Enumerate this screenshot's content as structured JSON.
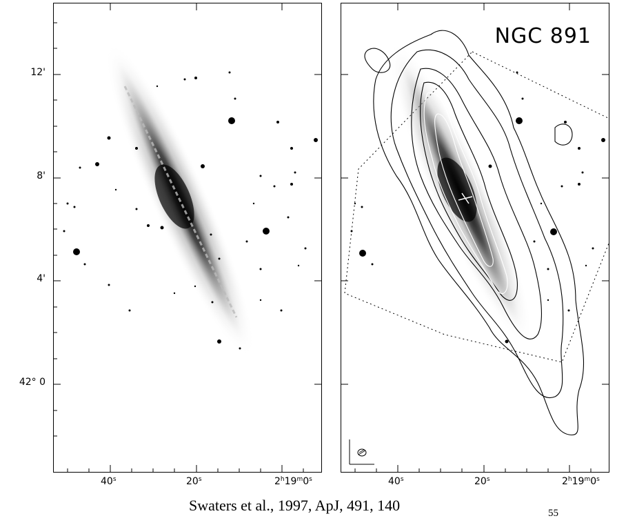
{
  "figure": {
    "title": "NGC 891",
    "y_axis": {
      "tick_labels": [
        "12'",
        "8'",
        "4'",
        "42° 0"
      ]
    },
    "x_axis": {
      "tick_labels": [
        "40",
        "20",
        "2",
        "19",
        "0"
      ],
      "superscripts": [
        "s",
        "s",
        "h",
        "m",
        "s"
      ]
    },
    "panels": [
      {
        "name": "left",
        "content": "optical image"
      },
      {
        "name": "right",
        "content": "optical image with contours"
      }
    ],
    "colors": {
      "background": "#ffffff",
      "ink": "#000000"
    }
  },
  "citation": "Swaters et al., 1997, ApJ, 491, 140",
  "page_number": "55"
}
